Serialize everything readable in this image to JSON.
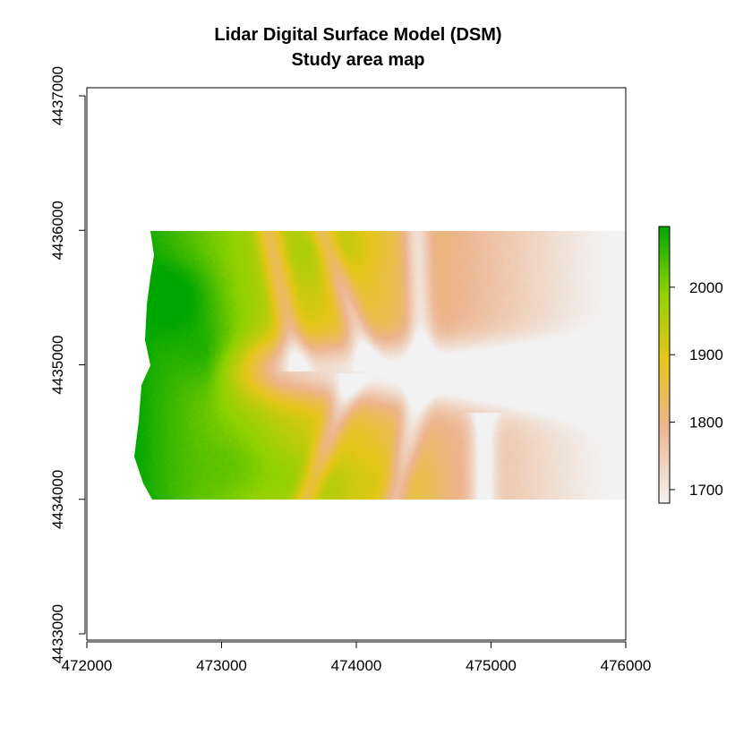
{
  "chart_data": {
    "type": "heatmap",
    "title_line1": "Lidar Digital Surface Model (DSM)",
    "title_line2": "Study area map",
    "xlabel": "",
    "ylabel": "",
    "xlim": [
      472000,
      476000
    ],
    "ylim": [
      4433000,
      4437000
    ],
    "x_ticks": [
      "472000",
      "473000",
      "474000",
      "475000",
      "476000"
    ],
    "y_ticks": [
      "4433000",
      "4434000",
      "4435000",
      "4436000",
      "4437000"
    ],
    "raster_extent": {
      "xmin": 472350,
      "xmax": 476000,
      "ymin": 4434000,
      "ymax": 4436000
    },
    "legend": {
      "position": "right",
      "ticks": [
        "1700",
        "1800",
        "1900",
        "2000"
      ],
      "range": [
        1680,
        2090
      ],
      "colors": [
        "#f2f2f2",
        "#edb48e",
        "#e6c619",
        "#8fd200",
        "#00a600"
      ]
    },
    "grid": false
  }
}
